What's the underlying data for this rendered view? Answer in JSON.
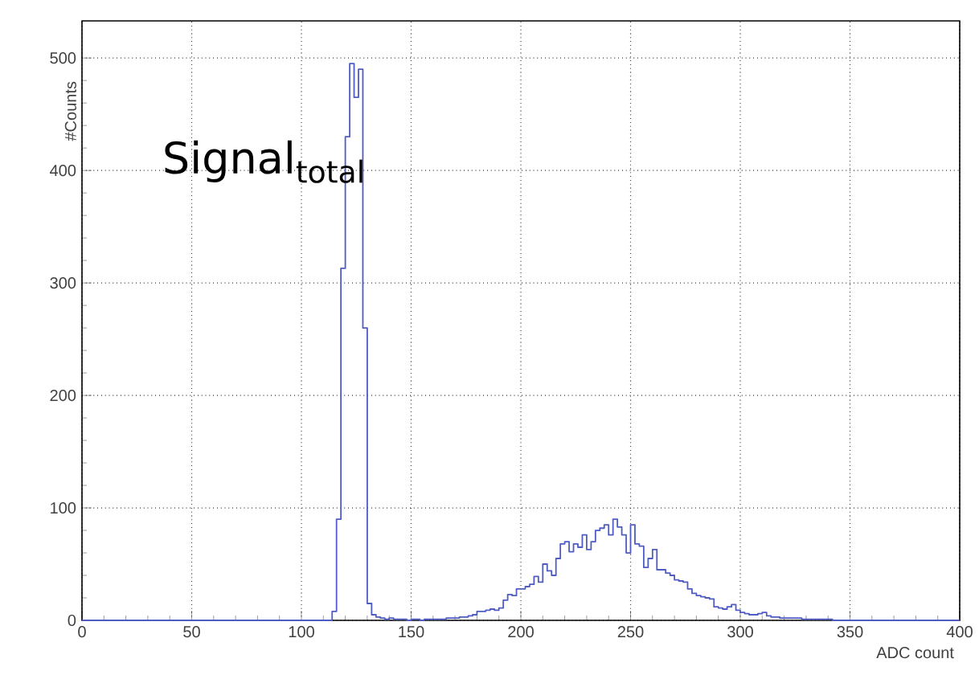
{
  "chart_data": {
    "type": "histogram",
    "xlabel": "ADC count",
    "ylabel": "#Counts",
    "annotations": [
      "Signal$_{total}$"
    ],
    "bins": [
      0,
      2,
      4,
      6,
      8,
      10,
      12,
      14,
      16,
      18,
      20,
      22,
      24,
      26,
      28,
      30,
      32,
      34,
      36,
      38,
      40,
      42,
      44,
      46,
      48,
      50,
      52,
      54,
      56,
      58,
      60,
      62,
      64,
      66,
      68,
      70,
      72,
      74,
      76,
      78,
      80,
      82,
      84,
      86,
      88,
      90,
      92,
      94,
      96,
      98,
      100,
      102,
      104,
      106,
      108,
      110,
      112,
      114,
      116,
      118,
      120,
      122,
      124,
      126,
      128,
      130,
      132,
      134,
      136,
      138,
      140,
      142,
      144,
      146,
      148,
      150,
      152,
      154,
      156,
      158,
      160,
      162,
      164,
      166,
      168,
      170,
      172,
      174,
      176,
      178,
      180,
      182,
      184,
      186,
      188,
      190,
      192,
      194,
      196,
      198,
      200,
      202,
      204,
      206,
      208,
      210,
      212,
      214,
      216,
      218,
      220,
      222,
      224,
      226,
      228,
      230,
      232,
      234,
      236,
      238,
      240,
      242,
      244,
      246,
      248,
      250,
      252,
      254,
      256,
      258,
      260,
      262,
      264,
      266,
      268,
      270,
      272,
      274,
      276,
      278,
      280,
      282,
      284,
      286,
      288,
      290,
      292,
      294,
      296,
      298,
      300,
      302,
      304,
      306,
      308,
      310,
      312,
      314,
      316,
      318,
      320,
      322,
      324,
      326,
      328,
      330,
      332,
      334,
      336,
      338,
      340,
      342,
      344,
      346,
      348,
      350,
      352,
      354,
      356,
      358,
      360,
      362,
      364,
      366,
      368,
      370,
      372,
      374,
      376,
      378,
      380,
      382,
      384,
      386,
      388,
      390,
      392,
      394,
      396,
      398,
      400
    ],
    "values": [
      0,
      0,
      0,
      0,
      0,
      0,
      0,
      0,
      0,
      0,
      0,
      0,
      0,
      0,
      0,
      0,
      0,
      0,
      0,
      0,
      0,
      0,
      0,
      0,
      0,
      0,
      0,
      0,
      0,
      0,
      0,
      0,
      0,
      0,
      0,
      0,
      0,
      0,
      0,
      0,
      0,
      0,
      0,
      0,
      0,
      0,
      0,
      0,
      0,
      0,
      0,
      0,
      0,
      0,
      0,
      0,
      0,
      8,
      90,
      313,
      430,
      495,
      465,
      490,
      260,
      15,
      5,
      3,
      2,
      1,
      2,
      1,
      1,
      1,
      0,
      1,
      1,
      0,
      1,
      1,
      1,
      1,
      1,
      2,
      2,
      2,
      3,
      3,
      4,
      5,
      8,
      8,
      9,
      10,
      9,
      11,
      18,
      23,
      22,
      28,
      28,
      30,
      32,
      39,
      34,
      50,
      44,
      40,
      55,
      68,
      70,
      61,
      68,
      65,
      76,
      63,
      70,
      80,
      82,
      85,
      76,
      90,
      83,
      76,
      60,
      85,
      68,
      66,
      47,
      55,
      63,
      45,
      45,
      42,
      40,
      36,
      35,
      34,
      28,
      24,
      22,
      21,
      20,
      19,
      12,
      11,
      10,
      12,
      14,
      9,
      7,
      6,
      5,
      5,
      6,
      7,
      4,
      3,
      3,
      2,
      2,
      2,
      2,
      2,
      1,
      1,
      1,
      1,
      1,
      1,
      1,
      0,
      0,
      0,
      0,
      0,
      0,
      0,
      0,
      0,
      0,
      0,
      0,
      0,
      0,
      0,
      0,
      0,
      0,
      0,
      0,
      0,
      0,
      0,
      0,
      0,
      0,
      0,
      0,
      0
    ],
    "color": "#4f5cc4",
    "xlim": [
      0,
      400
    ],
    "ylim": [
      0,
      533
    ],
    "xticks": [
      0,
      50,
      100,
      150,
      200,
      250,
      300,
      350,
      400
    ],
    "yticks": [
      0,
      100,
      200,
      300,
      400,
      500
    ],
    "grid": true
  }
}
